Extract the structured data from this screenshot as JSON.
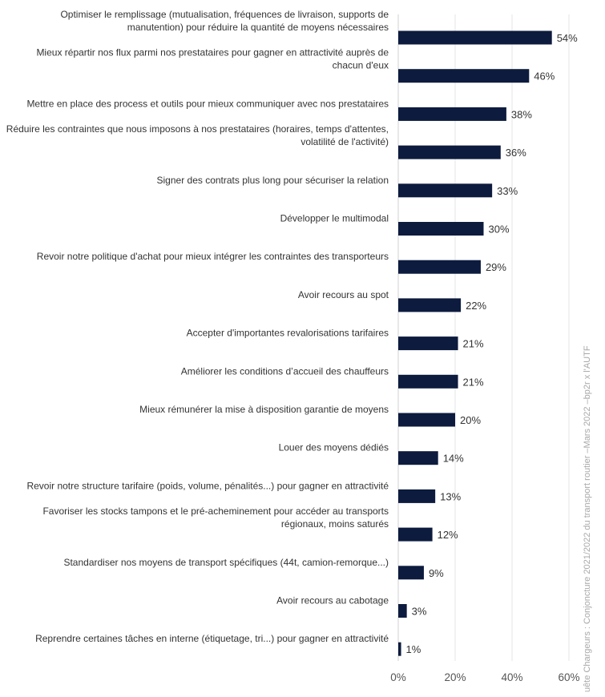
{
  "chart_data": {
    "type": "bar",
    "orientation": "horizontal",
    "categories": [
      [
        "Optimiser le remplissage (mutualisation, fréquences de livraison, supports de",
        "manutention) pour réduire la quantité de moyens nécessaires"
      ],
      [
        "Mieux répartir nos flux parmi nos prestataires pour gagner en attractivité auprès de",
        "chacun d'eux"
      ],
      [
        "Mettre en place des process et outils pour mieux communiquer avec nos prestataires"
      ],
      [
        "Réduire les contraintes que nous imposons à nos prestataires (horaires, temps d'attentes,",
        "volatilité de l'activité)"
      ],
      [
        "Signer des contrats plus long pour sécuriser la relation"
      ],
      [
        "Développer le multimodal"
      ],
      [
        "Revoir notre politique d'achat pour mieux intégrer les contraintes des transporteurs"
      ],
      [
        "Avoir recours au spot"
      ],
      [
        "Accepter d'importantes revalorisations tarifaires"
      ],
      [
        "Améliorer les conditions d’accueil des chauffeurs"
      ],
      [
        "Mieux rémunérer la mise à disposition garantie de moyens"
      ],
      [
        "Louer des moyens dédiés"
      ],
      [
        "Revoir notre structure tarifaire (poids, volume, pénalités...) pour gagner en attractivité"
      ],
      [
        "Favoriser les stocks tampons et le pré-acheminement pour accéder au transports",
        "régionaux, moins saturés"
      ],
      [
        "Standardiser nos moyens de transport spécifiques (44t, camion-remorque...)"
      ],
      [
        "Avoir recours au cabotage"
      ],
      [
        "Reprendre certaines tâches en interne (étiquetage, tri...) pour gagner en attractivité"
      ]
    ],
    "values": [
      54,
      46,
      38,
      36,
      33,
      30,
      29,
      22,
      21,
      21,
      20,
      14,
      13,
      12,
      9,
      3,
      1
    ],
    "value_labels": [
      "54%",
      "46%",
      "38%",
      "36%",
      "33%",
      "30%",
      "29%",
      "22%",
      "21%",
      "21%",
      "20%",
      "14%",
      "13%",
      "12%",
      "9%",
      "3%",
      "1%"
    ],
    "xlim": [
      0,
      60
    ],
    "xticks": [
      0,
      20,
      40,
      60
    ],
    "xtick_labels": [
      "0%",
      "20%",
      "40%",
      "60%"
    ],
    "bar_color": "#0d1b3e",
    "grid": true,
    "source": "uête Chargeurs : Conjoncture 2021/2022 du transport routier –Mars 2022 –bp2r x l'AUTF"
  }
}
